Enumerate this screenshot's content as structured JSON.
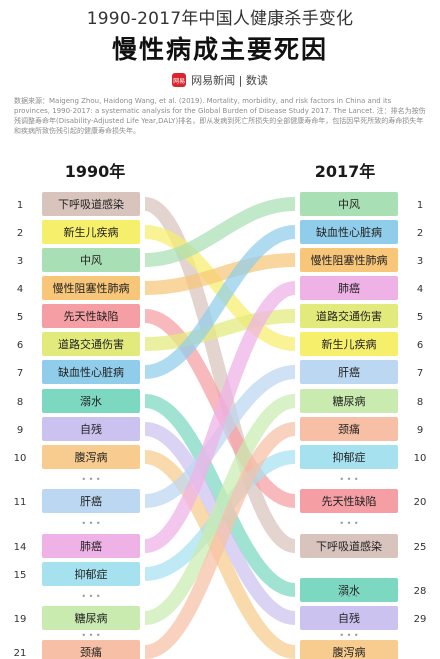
{
  "header": {
    "supertitle": "1990-2017年中国人健康杀手变化",
    "title": "慢性病成主要死因",
    "brand": "网易新闻 | 数读",
    "logo_text": "网易",
    "source_note": "数据来源：Maigeng Zhou, Haidong Wang, et al. (2019). Mortality, morbidity, and risk factors in China and its provinces, 1990-2017: a systematic analysis for the Global Burden of Disease Study 2017. The Lancet.\n注：排名为按伤残调整寿命年(Disability-Adjusted Life Year,DALY)排名，即从发病到死亡所损失的全部健康寿命年，包括因早死所致的寿命损失年和疾病所致伤残引起的健康寿命损失年。"
  },
  "chart_data": {
    "type": "slope",
    "left_year": "1990年",
    "right_year": "2017年",
    "left": [
      {
        "rank": "1",
        "label": "下呼吸道感染",
        "color": "#d9c4bd"
      },
      {
        "rank": "2",
        "label": "新生儿疾病",
        "color": "#f6ef6c"
      },
      {
        "rank": "3",
        "label": "中风",
        "color": "#a9dfb4"
      },
      {
        "rank": "4",
        "label": "慢性阻塞性肺病",
        "color": "#f7c679"
      },
      {
        "rank": "5",
        "label": "先天性缺陷",
        "color": "#f59ea4"
      },
      {
        "rank": "6",
        "label": "道路交通伤害",
        "color": "#e3ea7c"
      },
      {
        "rank": "7",
        "label": "缺血性心脏病",
        "color": "#90cdea"
      },
      {
        "rank": "8",
        "label": "溺水",
        "color": "#7dd8c2"
      },
      {
        "rank": "9",
        "label": "自残",
        "color": "#ccc2ef"
      },
      {
        "rank": "10",
        "label": "腹泻病",
        "color": "#f7cc8e"
      },
      {
        "rank": "11",
        "label": "肝癌",
        "color": "#bcd7f1"
      },
      {
        "rank": "14",
        "label": "肺癌",
        "color": "#eeb2e6"
      },
      {
        "rank": "15",
        "label": "抑郁症",
        "color": "#a6e1f0"
      },
      {
        "rank": "19",
        "label": "糖尿病",
        "color": "#c9ebb0"
      },
      {
        "rank": "21",
        "label": "颈痛",
        "color": "#f7c0a6"
      }
    ],
    "right": [
      {
        "rank": "1",
        "label": "中风",
        "color": "#a9dfb4"
      },
      {
        "rank": "2",
        "label": "缺血性心脏病",
        "color": "#90cdea"
      },
      {
        "rank": "3",
        "label": "慢性阻塞性肺病",
        "color": "#f7c679"
      },
      {
        "rank": "4",
        "label": "肺癌",
        "color": "#eeb2e6"
      },
      {
        "rank": "5",
        "label": "道路交通伤害",
        "color": "#e3ea7c"
      },
      {
        "rank": "6",
        "label": "新生儿疾病",
        "color": "#f6ef6c"
      },
      {
        "rank": "7",
        "label": "肝癌",
        "color": "#bcd7f1"
      },
      {
        "rank": "8",
        "label": "糖尿病",
        "color": "#c9ebb0"
      },
      {
        "rank": "9",
        "label": "颈痛",
        "color": "#f7c0a6"
      },
      {
        "rank": "10",
        "label": "抑郁症",
        "color": "#a6e1f0"
      },
      {
        "rank": "20",
        "label": "先天性缺陷",
        "color": "#f59ea4"
      },
      {
        "rank": "25",
        "label": "下呼吸道感染",
        "color": "#d9c4bd"
      },
      {
        "rank": "28",
        "label": "溺水",
        "color": "#7dd8c2"
      },
      {
        "rank": "29",
        "label": "自残",
        "color": "#ccc2ef"
      },
      {
        "rank": "",
        "label": "腹泻病",
        "color": "#f7cc8e"
      }
    ],
    "gap_marker": "• • •"
  }
}
